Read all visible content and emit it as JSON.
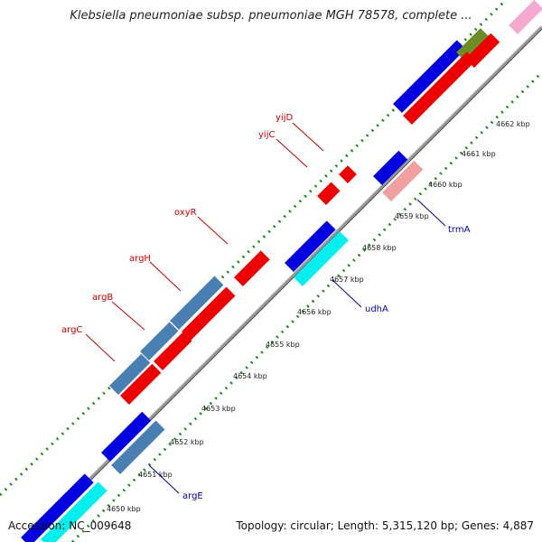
{
  "title": "Klebsiella pneumoniae subsp. pneumoniae MGH 78578, complete ...",
  "accession": "Accession: NC_009648",
  "summary": "Topology: circular; Length: 5,315,120 bp; Genes: 4,887",
  "colors": {
    "backbone": "#909090",
    "ruler_dots": "#1a8a1a",
    "blue": "#0000e0",
    "red": "#ee0000",
    "steelblue": "#4a7fb3",
    "cyan": "#00f0f0",
    "pink": "#f0a0a0",
    "olive": "#6a8e23",
    "lightpink": "#f5a8d0",
    "label_up": "#cc0000",
    "label_down": "#00009c"
  },
  "ruler_ticks": [
    "4650 kbp",
    "4651 kbp",
    "4652 kbp",
    "4653 kbp",
    "4654 kbp",
    "4655 kbp",
    "4656 kbp",
    "4657 kbp",
    "4658 kbp",
    "4659 kbp",
    "4660 kbp",
    "4661 kbp",
    "4662 kbp"
  ],
  "gene_labels_upper": [
    "argC",
    "argB",
    "argH",
    "oxyR",
    "yijC",
    "yijD"
  ],
  "gene_labels_lower": [
    "argE",
    "udhA",
    "trmA"
  ]
}
